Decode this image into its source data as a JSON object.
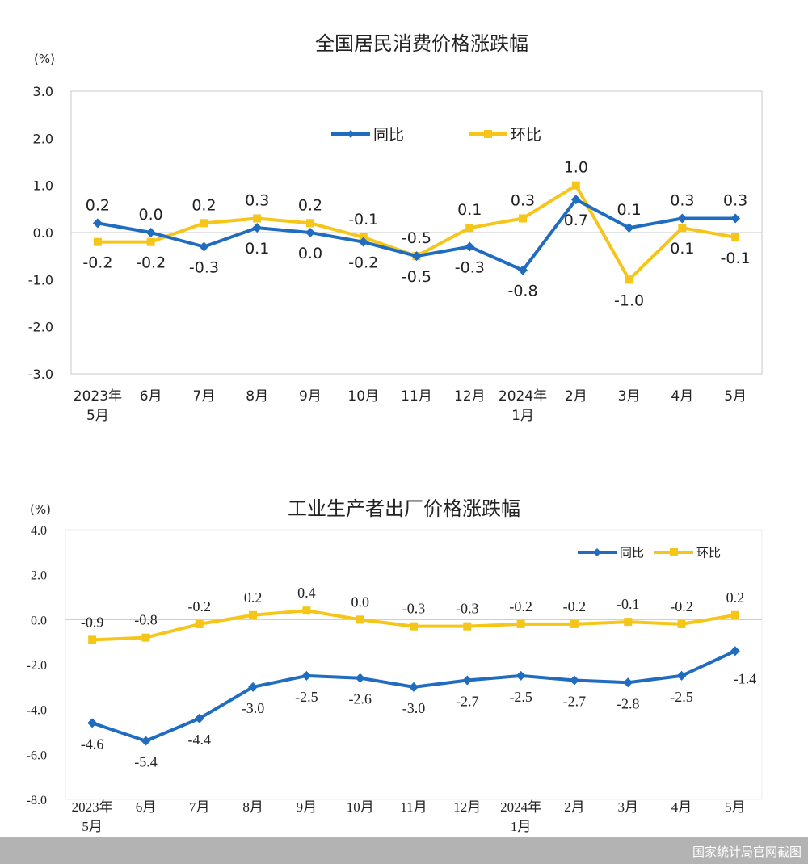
{
  "colors": {
    "yoy": "#1f6cc1",
    "mom": "#f5c518",
    "axis": "#d9d9d9",
    "text": "#222222"
  },
  "chart_data": [
    {
      "type": "line",
      "title": "全国居民消费价格涨跌幅",
      "ylabel": "(%)",
      "ylim": [
        -3.0,
        3.0
      ],
      "yticks": [
        "3.0",
        "2.0",
        "1.0",
        "0.0",
        "-1.0",
        "-2.0",
        "-3.0"
      ],
      "categories": [
        [
          "2023年",
          "5月"
        ],
        [
          "6月"
        ],
        [
          "7月"
        ],
        [
          "8月"
        ],
        [
          "9月"
        ],
        [
          "10月"
        ],
        [
          "11月"
        ],
        [
          "12月"
        ],
        [
          "2024年",
          "1月"
        ],
        [
          "2月"
        ],
        [
          "3月"
        ],
        [
          "4月"
        ],
        [
          "5月"
        ]
      ],
      "legend": "top-center",
      "series": [
        {
          "name": "同比",
          "color": "#1f6cc1",
          "marker": "diamond",
          "values": [
            0.2,
            0.0,
            -0.3,
            0.1,
            0.0,
            -0.2,
            -0.5,
            -0.3,
            -0.8,
            0.7,
            0.1,
            0.3,
            0.3
          ]
        },
        {
          "name": "环比",
          "color": "#f5c518",
          "marker": "square",
          "values": [
            -0.2,
            -0.2,
            0.2,
            0.3,
            0.2,
            -0.1,
            -0.5,
            0.1,
            0.3,
            1.0,
            -1.0,
            0.1,
            -0.1
          ]
        }
      ]
    },
    {
      "type": "line",
      "title": "工业生产者出厂价格涨跌幅",
      "ylabel": "(%)",
      "ylim": [
        -8.0,
        4.0
      ],
      "yticks": [
        "4.0",
        "2.0",
        "0.0",
        "-2.0",
        "-4.0",
        "-6.0",
        "-8.0"
      ],
      "categories": [
        [
          "2023年",
          "5月"
        ],
        [
          "6月"
        ],
        [
          "7月"
        ],
        [
          "8月"
        ],
        [
          "9月"
        ],
        [
          "10月"
        ],
        [
          "11月"
        ],
        [
          "12月"
        ],
        [
          "2024年",
          "1月"
        ],
        [
          "2月"
        ],
        [
          "3月"
        ],
        [
          "4月"
        ],
        [
          "5月"
        ]
      ],
      "legend": "top-right",
      "series": [
        {
          "name": "同比",
          "color": "#1f6cc1",
          "marker": "diamond",
          "values": [
            -4.6,
            -5.4,
            -4.4,
            -3.0,
            -2.5,
            -2.6,
            -3.0,
            -2.7,
            -2.5,
            -2.7,
            -2.8,
            -2.5,
            -1.4
          ]
        },
        {
          "name": "环比",
          "color": "#f5c518",
          "marker": "square",
          "values": [
            -0.9,
            -0.8,
            -0.2,
            0.2,
            0.4,
            0.0,
            -0.3,
            -0.3,
            -0.2,
            -0.2,
            -0.1,
            -0.2,
            0.2
          ]
        }
      ]
    }
  ],
  "footer": {
    "watermark": "国家统计局官网截图"
  }
}
